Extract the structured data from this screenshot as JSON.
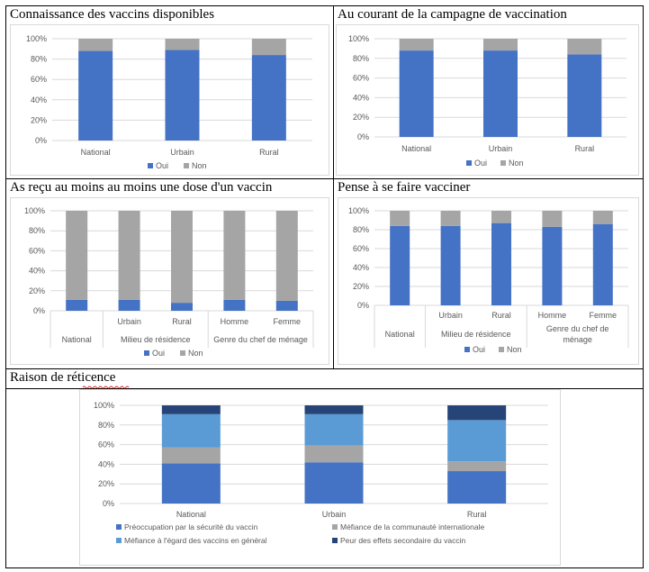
{
  "colors": {
    "oui": "#4472c4",
    "non": "#a5a5a5",
    "securite": "#4472c4",
    "mefiance_intl": "#a5a5a5",
    "mefiance_gen": "#5b9bd5",
    "effets": "#264478",
    "grid": "#d9d9d9",
    "text": "#595959"
  },
  "cells": {
    "c1": {
      "title": "Connaissance des vaccins disponibles"
    },
    "c2": {
      "title": "Au courant de la campagne de vaccination"
    },
    "c3": {
      "title": "As reçu au moins au moins une dose d'un vaccin"
    },
    "c4": {
      "title": "Pense à se faire vacciner"
    },
    "c5": {
      "title": "Raison de réticence"
    }
  },
  "chart_data": [
    {
      "id": "c1",
      "type": "bar",
      "stacked": true,
      "title": "Connaissance des vaccins disponibles",
      "categories": [
        "National",
        "Urbain",
        "Rural"
      ],
      "series": [
        {
          "name": "Oui",
          "values": [
            88,
            89,
            84
          ]
        },
        {
          "name": "Non",
          "values": [
            12,
            11,
            16
          ]
        }
      ],
      "yticks": [
        "0%",
        "20%",
        "40%",
        "60%",
        "80%",
        "100%"
      ],
      "ylim": [
        0,
        100
      ],
      "grid": true,
      "legend": "bottom"
    },
    {
      "id": "c2",
      "type": "bar",
      "stacked": true,
      "title": "Au courant de la campagne de vaccination",
      "categories": [
        "National",
        "Urbain",
        "Rural"
      ],
      "series": [
        {
          "name": "Oui",
          "values": [
            88,
            88,
            84
          ]
        },
        {
          "name": "Non",
          "values": [
            12,
            12,
            16
          ]
        }
      ],
      "yticks": [
        "0%",
        "20%",
        "40%",
        "60%",
        "80%",
        "100%"
      ],
      "ylim": [
        0,
        100
      ],
      "grid": true,
      "legend": "bottom"
    },
    {
      "id": "c3",
      "type": "bar",
      "stacked": true,
      "title": "As reçu au moins au moins une dose d'un vaccin",
      "categories": [
        "",
        "Urbain",
        "Rural",
        "Homme",
        "Femme"
      ],
      "groups": [
        "National",
        "Milieu de résidence",
        "Genre du chef de ménage"
      ],
      "series": [
        {
          "name": "Oui",
          "values": [
            11,
            11,
            8,
            11,
            10
          ]
        },
        {
          "name": "Non",
          "values": [
            89,
            89,
            92,
            89,
            90
          ]
        }
      ],
      "yticks": [
        "0%",
        "20%",
        "40%",
        "60%",
        "80%",
        "100%"
      ],
      "ylim": [
        0,
        100
      ],
      "grid": true,
      "legend": "bottom"
    },
    {
      "id": "c4",
      "type": "bar",
      "stacked": true,
      "title": "Pense à se faire vacciner",
      "categories": [
        "",
        "Urbain",
        "Rural",
        "Homme",
        "Femme"
      ],
      "groups": [
        "National",
        "Milieu de résidence",
        "Genre du chef de ménage"
      ],
      "series": [
        {
          "name": "Oui",
          "values": [
            84,
            84,
            87,
            83,
            86
          ]
        },
        {
          "name": "Non",
          "values": [
            16,
            16,
            13,
            17,
            14
          ]
        }
      ],
      "yticks": [
        "0%",
        "20%",
        "40%",
        "60%",
        "80%",
        "100%"
      ],
      "ylim": [
        0,
        100
      ],
      "grid": true,
      "legend": "bottom"
    },
    {
      "id": "c5",
      "type": "bar",
      "stacked": true,
      "title": "Raison de réticence",
      "categories": [
        "National",
        "Urbain",
        "Rural"
      ],
      "series": [
        {
          "name": "Préoccupation par la sécurité du vaccin",
          "values": [
            41,
            42,
            33
          ]
        },
        {
          "name": "Méfiance de la communauté internationale",
          "values": [
            16,
            17,
            10
          ]
        },
        {
          "name": "Méfiance à l'égard des vaccins en général",
          "values": [
            34,
            32,
            42
          ]
        },
        {
          "name": "Peur des effets secondaire du vaccin",
          "values": [
            9,
            9,
            15
          ]
        }
      ],
      "yticks": [
        "0%",
        "20%",
        "40%",
        "60%",
        "80%",
        "100%"
      ],
      "ylim": [
        0,
        100
      ],
      "grid": true,
      "legend": "bottom"
    }
  ]
}
